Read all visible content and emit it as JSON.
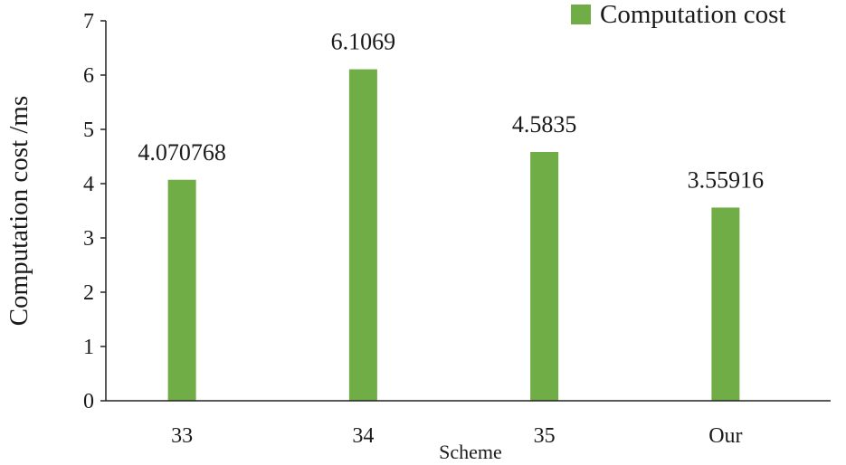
{
  "chart_data": {
    "type": "bar",
    "title": "",
    "xlabel": "Scheme",
    "ylabel": "Computation cost /ms",
    "categories": [
      "33",
      "34",
      "35",
      "Our"
    ],
    "series": [
      {
        "name": "Computation cost",
        "values": [
          4.070768,
          6.1069,
          4.5835,
          3.55916
        ],
        "labels": [
          "4.070768",
          "6.1069",
          "4.5835",
          "3.55916"
        ],
        "color": "#70ad47"
      }
    ],
    "ylim": [
      0,
      7
    ],
    "yticks": [
      "0",
      "1",
      "2",
      "3",
      "4",
      "5",
      "6",
      "7"
    ],
    "grid": false,
    "legend_position": "top-right"
  }
}
